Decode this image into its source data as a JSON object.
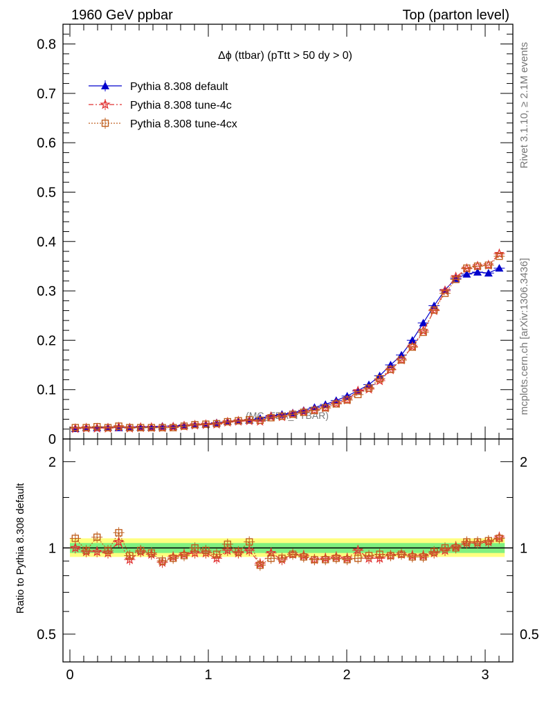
{
  "header": {
    "left": "1960 GeV ppbar",
    "right": "Top (parton level)"
  },
  "side": {
    "rivet": "Rivet 3.1.10, ≥ 2.1M events",
    "mcplots": "mcplots.cern.ch [arXiv:1306.3436]"
  },
  "watermark": "(MC_FBA_TTBAR)",
  "colors": {
    "default": "#0000cc",
    "tune4c": "#e03030",
    "tune4cx": "#c06020"
  },
  "chart_data": [
    {
      "type": "line",
      "title": "Δϕ (ttbar) (pTtt > 50 dy > 0)",
      "xlabel": "",
      "ylabel": "",
      "xlim": [
        -0.05,
        3.2
      ],
      "ylim": [
        0,
        0.84
      ],
      "yticks": [
        0,
        0.1,
        0.2,
        0.3,
        0.4,
        0.5,
        0.6,
        0.7,
        0.8
      ],
      "ytick_labels": [
        "0",
        "0.1",
        "0.2",
        "0.3",
        "0.4",
        "0.5",
        "0.6",
        "0.7",
        "0.8"
      ],
      "legend_position": "top-left",
      "x": [
        0.039,
        0.118,
        0.196,
        0.275,
        0.353,
        0.432,
        0.511,
        0.589,
        0.668,
        0.746,
        0.825,
        0.903,
        0.982,
        1.06,
        1.139,
        1.217,
        1.296,
        1.374,
        1.453,
        1.532,
        1.61,
        1.689,
        1.767,
        1.846,
        1.924,
        2.003,
        2.081,
        2.16,
        2.238,
        2.317,
        2.395,
        2.474,
        2.553,
        2.631,
        2.71,
        2.788,
        2.867,
        2.945,
        3.024,
        3.102
      ],
      "series": [
        {
          "name": "Pythia 8.308 default",
          "values": [
            0.021,
            0.023,
            0.023,
            0.024,
            0.023,
            0.024,
            0.024,
            0.024,
            0.026,
            0.026,
            0.028,
            0.029,
            0.03,
            0.033,
            0.035,
            0.037,
            0.038,
            0.042,
            0.047,
            0.05,
            0.053,
            0.058,
            0.064,
            0.07,
            0.078,
            0.087,
            0.098,
            0.11,
            0.128,
            0.15,
            0.17,
            0.2,
            0.235,
            0.27,
            0.302,
            0.325,
            0.334,
            0.338,
            0.336,
            0.346
          ]
        },
        {
          "name": "Pythia 8.308 tune-4c",
          "values": [
            0.021,
            0.022,
            0.022,
            0.022,
            0.024,
            0.022,
            0.023,
            0.023,
            0.023,
            0.024,
            0.026,
            0.028,
            0.029,
            0.03,
            0.034,
            0.036,
            0.037,
            0.036,
            0.045,
            0.045,
            0.05,
            0.055,
            0.058,
            0.063,
            0.072,
            0.079,
            0.097,
            0.101,
            0.118,
            0.14,
            0.16,
            0.187,
            0.219,
            0.26,
            0.3,
            0.328,
            0.345,
            0.35,
            0.352,
            0.375
          ]
        },
        {
          "name": "Pythia 8.308 tune-4cx",
          "values": [
            0.023,
            0.023,
            0.025,
            0.023,
            0.026,
            0.023,
            0.023,
            0.023,
            0.023,
            0.023,
            0.026,
            0.029,
            0.03,
            0.031,
            0.035,
            0.037,
            0.039,
            0.038,
            0.043,
            0.046,
            0.05,
            0.054,
            0.058,
            0.063,
            0.071,
            0.079,
            0.09,
            0.103,
            0.122,
            0.141,
            0.16,
            0.186,
            0.216,
            0.261,
            0.295,
            0.323,
            0.346,
            0.35,
            0.352,
            0.37
          ]
        }
      ]
    },
    {
      "type": "line",
      "title": "",
      "ylabel": "Ratio to Pythia 8.308 default",
      "xlabel": "",
      "xlim": [
        -0.05,
        3.2
      ],
      "ylim": [
        0.4,
        2.4
      ],
      "log_y": true,
      "yticks": [
        0.5,
        1,
        2
      ],
      "ytick_labels": [
        "0.5",
        "1",
        "2"
      ],
      "xticks": [
        0,
        1,
        2,
        3
      ],
      "xtick_labels": [
        "0",
        "1",
        "2",
        "3"
      ],
      "band_inner": [
        0.96,
        1.04
      ],
      "band_outer": [
        0.93,
        1.08
      ],
      "x": [
        0.039,
        0.118,
        0.196,
        0.275,
        0.353,
        0.432,
        0.511,
        0.589,
        0.668,
        0.746,
        0.825,
        0.903,
        0.982,
        1.06,
        1.139,
        1.217,
        1.296,
        1.374,
        1.453,
        1.532,
        1.61,
        1.689,
        1.767,
        1.846,
        1.924,
        2.003,
        2.081,
        2.16,
        2.238,
        2.317,
        2.395,
        2.474,
        2.553,
        2.631,
        2.71,
        2.788,
        2.867,
        2.945,
        3.024,
        3.102
      ],
      "series": [
        {
          "name": "Pythia 8.308 tune-4c",
          "values": [
            1.0,
            0.97,
            0.97,
            0.96,
            1.05,
            0.91,
            0.97,
            0.95,
            0.89,
            0.93,
            0.95,
            0.96,
            0.96,
            0.92,
            0.98,
            0.96,
            0.98,
            0.88,
            0.96,
            0.91,
            0.95,
            0.94,
            0.91,
            0.92,
            0.93,
            0.92,
            0.98,
            0.92,
            0.92,
            0.94,
            0.95,
            0.94,
            0.94,
            0.96,
            0.98,
            1.01,
            1.04,
            1.04,
            1.05,
            1.09
          ]
        },
        {
          "name": "Pythia 8.308 tune-4cx",
          "values": [
            1.08,
            0.98,
            1.09,
            0.98,
            1.13,
            0.94,
            0.98,
            0.96,
            0.9,
            0.92,
            0.94,
            1.0,
            0.98,
            0.95,
            1.03,
            0.97,
            1.05,
            0.87,
            0.92,
            0.92,
            0.95,
            0.93,
            0.91,
            0.91,
            0.92,
            0.91,
            0.92,
            0.94,
            0.95,
            0.94,
            0.95,
            0.93,
            0.93,
            0.97,
            1.0,
            1.0,
            1.05,
            1.05,
            1.06,
            1.08
          ]
        }
      ]
    }
  ]
}
